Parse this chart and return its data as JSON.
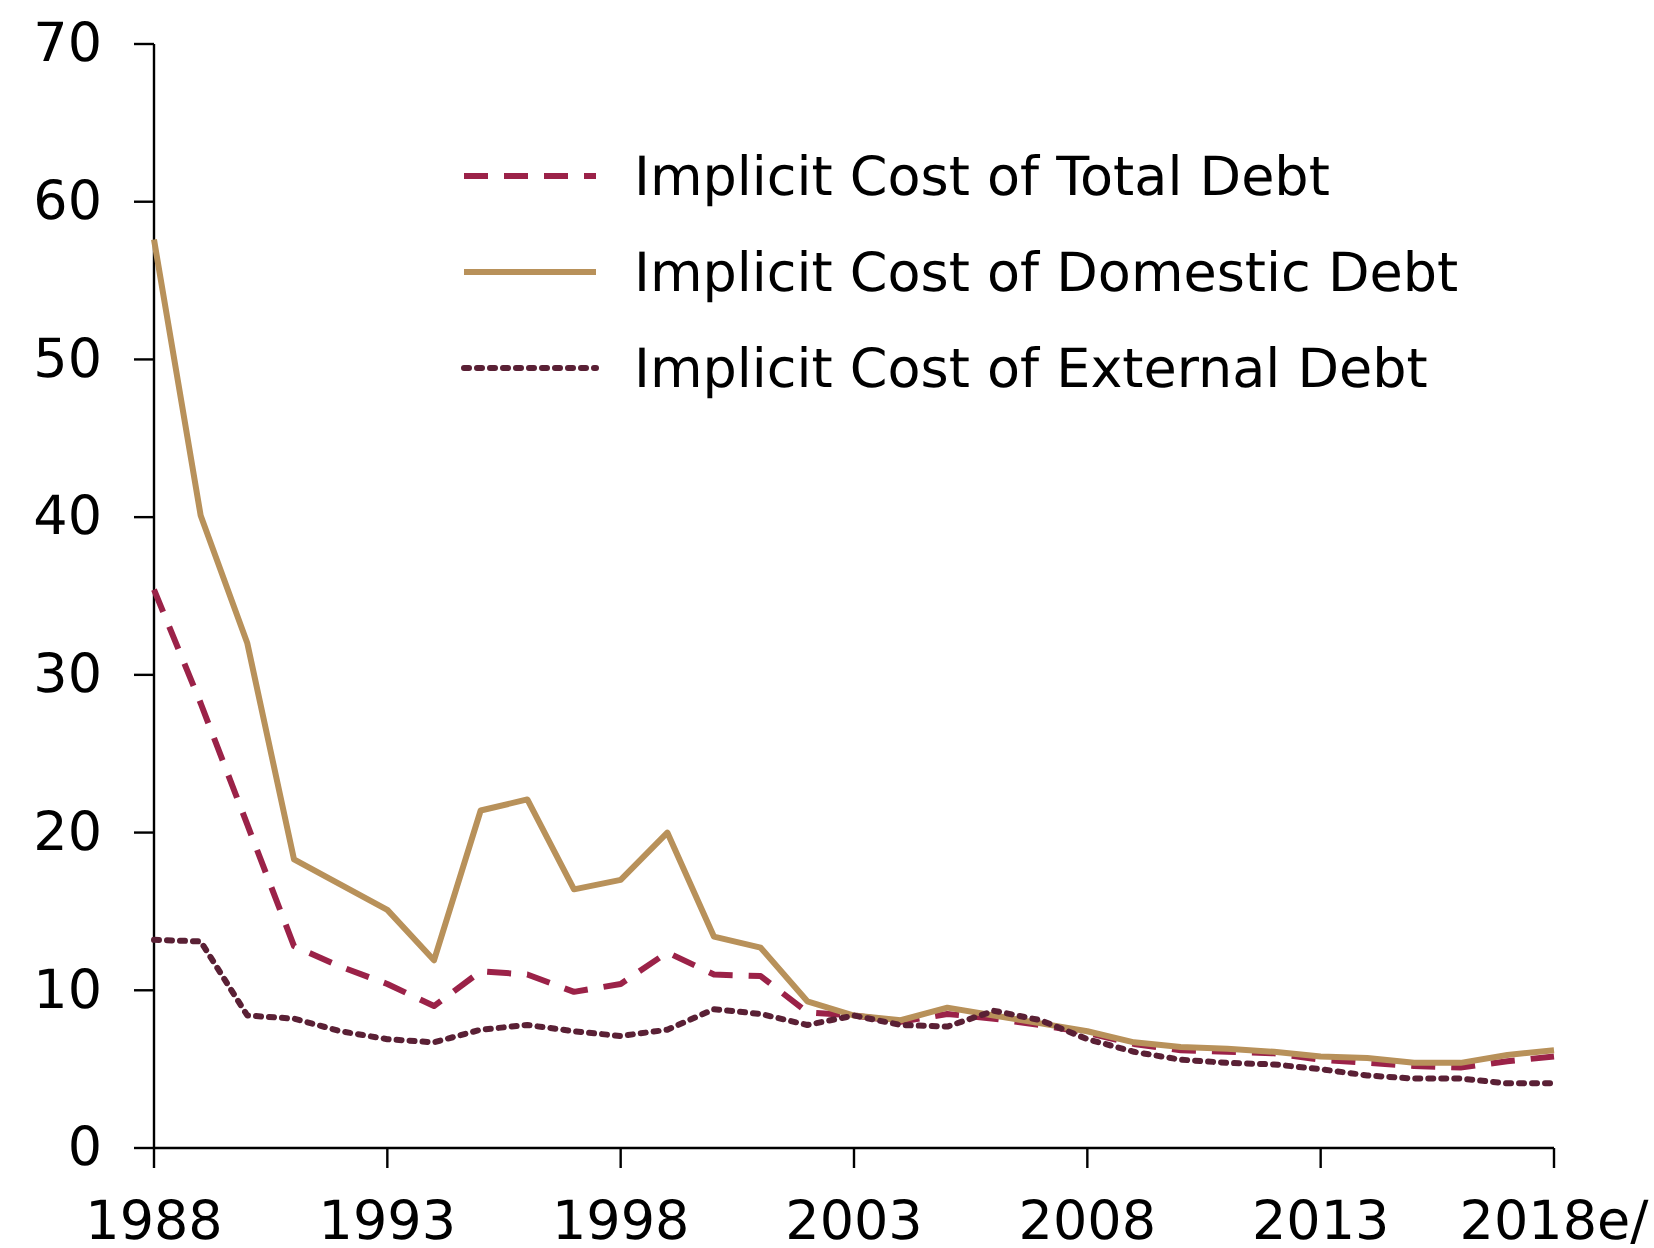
{
  "chart_data": {
    "type": "line",
    "x": [
      1988,
      1989,
      1990,
      1991,
      1992,
      1993,
      1994,
      1995,
      1996,
      1997,
      1998,
      1999,
      2000,
      2001,
      2002,
      2003,
      2004,
      2005,
      2006,
      2007,
      2008,
      2009,
      2010,
      2011,
      2012,
      2013,
      2014,
      2015,
      2016,
      2017,
      2018
    ],
    "series": [
      {
        "name": "Implicit Cost of Total Debt",
        "color": "#9b2248",
        "line_style": "dashed",
        "values": [
          35.4,
          28.2,
          20.5,
          12.8,
          11.5,
          10.4,
          9.0,
          11.2,
          11.0,
          9.9,
          10.4,
          12.4,
          11.0,
          10.9,
          8.6,
          8.4,
          8.0,
          8.5,
          8.2,
          7.8,
          7.3,
          6.6,
          6.2,
          6.1,
          6.0,
          5.6,
          5.4,
          5.2,
          5.1,
          5.5,
          5.8
        ]
      },
      {
        "name": "Implicit Cost of Domestic Debt",
        "color": "#b8915a",
        "line_style": "solid",
        "values": [
          57.6,
          40.1,
          32.0,
          18.3,
          16.7,
          15.1,
          11.9,
          21.4,
          22.1,
          16.4,
          17.0,
          20.0,
          13.4,
          12.7,
          9.3,
          8.4,
          8.1,
          8.9,
          8.4,
          7.9,
          7.4,
          6.7,
          6.4,
          6.3,
          6.1,
          5.8,
          5.7,
          5.4,
          5.4,
          5.9,
          6.2
        ]
      },
      {
        "name": "Implicit Cost of External Debt",
        "color": "#5a2035",
        "line_style": "dotted",
        "values": [
          13.2,
          13.1,
          8.4,
          8.2,
          7.4,
          6.9,
          6.7,
          7.5,
          7.8,
          7.4,
          7.1,
          7.5,
          8.8,
          8.5,
          7.8,
          8.4,
          7.8,
          7.7,
          8.7,
          8.1,
          6.9,
          6.1,
          5.6,
          5.4,
          5.3,
          5.0,
          4.6,
          4.4,
          4.4,
          4.1,
          4.1
        ]
      }
    ],
    "xlim": [
      1988,
      2018
    ],
    "xticks": [
      1988,
      1993,
      1998,
      2003,
      2008,
      2013,
      {
        "value": 2018,
        "label": "2018e/"
      }
    ],
    "ylim": [
      0,
      70
    ],
    "yticks": [
      0,
      10,
      20,
      30,
      40,
      50,
      60,
      70
    ],
    "legend": "top right"
  }
}
